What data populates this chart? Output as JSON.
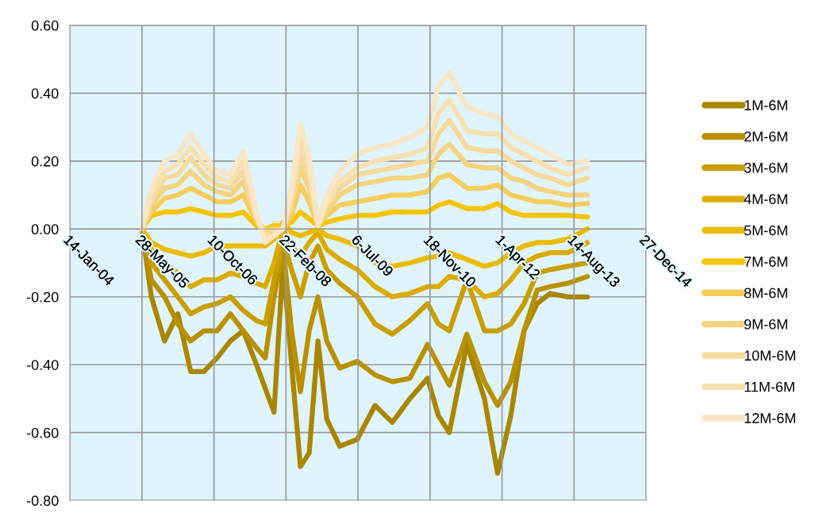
{
  "chart_data": {
    "type": "line",
    "x": [
      "2005-05-28",
      "2005-08-01",
      "2005-11-01",
      "2006-02-01",
      "2006-05-01",
      "2006-08-01",
      "2006-11-01",
      "2007-02-01",
      "2007-05-01",
      "2007-08-01",
      "2007-10-01",
      "2007-12-01",
      "2008-02-01",
      "2008-04-01",
      "2008-06-01",
      "2008-08-01",
      "2008-10-01",
      "2008-12-01",
      "2009-03-01",
      "2009-07-01",
      "2009-11-01",
      "2010-03-01",
      "2010-07-01",
      "2010-11-01",
      "2011-01-15",
      "2011-04-01",
      "2011-08-01",
      "2011-12-01",
      "2012-03-01",
      "2012-06-01",
      "2012-09-01",
      "2012-12-01",
      "2013-03-01",
      "2013-07-01",
      "2013-11-15"
    ],
    "series": [
      {
        "name": "1M-6M",
        "color": "#a98600",
        "values": [
          0.0,
          -0.2,
          -0.33,
          -0.25,
          -0.42,
          -0.42,
          -0.38,
          -0.33,
          -0.3,
          -0.4,
          -0.47,
          -0.54,
          -0.1,
          -0.4,
          -0.7,
          -0.66,
          -0.33,
          -0.56,
          -0.64,
          -0.62,
          -0.52,
          -0.57,
          -0.5,
          -0.44,
          -0.55,
          -0.6,
          -0.34,
          -0.5,
          -0.72,
          -0.55,
          -0.3,
          -0.22,
          -0.19,
          -0.2,
          -0.2
        ]
      },
      {
        "name": "2M-6M",
        "color": "#b99100",
        "values": [
          0.0,
          -0.15,
          -0.2,
          -0.28,
          -0.33,
          -0.3,
          -0.3,
          -0.25,
          -0.3,
          -0.35,
          -0.38,
          -0.2,
          -0.05,
          -0.3,
          -0.48,
          -0.3,
          -0.2,
          -0.33,
          -0.41,
          -0.39,
          -0.43,
          -0.45,
          -0.44,
          -0.34,
          -0.4,
          -0.46,
          -0.31,
          -0.45,
          -0.52,
          -0.45,
          -0.3,
          -0.18,
          -0.17,
          -0.16,
          -0.14
        ]
      },
      {
        "name": "3M-6M",
        "color": "#c89e00",
        "values": [
          0.0,
          -0.1,
          -0.15,
          -0.2,
          -0.25,
          -0.23,
          -0.22,
          -0.2,
          -0.24,
          -0.27,
          -0.28,
          -0.15,
          -0.03,
          -0.12,
          -0.2,
          -0.1,
          -0.05,
          -0.12,
          -0.16,
          -0.2,
          -0.28,
          -0.31,
          -0.27,
          -0.22,
          -0.28,
          -0.3,
          -0.15,
          -0.3,
          -0.3,
          -0.28,
          -0.22,
          -0.13,
          -0.12,
          -0.11,
          -0.1
        ]
      },
      {
        "name": "4M-6M",
        "color": "#dbac00",
        "values": [
          0.0,
          -0.06,
          -0.1,
          -0.13,
          -0.17,
          -0.15,
          -0.15,
          -0.13,
          -0.14,
          -0.16,
          -0.17,
          -0.1,
          0.0,
          -0.05,
          -0.08,
          -0.04,
          -0.01,
          -0.06,
          -0.09,
          -0.12,
          -0.17,
          -0.2,
          -0.19,
          -0.17,
          -0.17,
          -0.14,
          -0.15,
          -0.2,
          -0.19,
          -0.15,
          -0.1,
          -0.08,
          -0.07,
          -0.07,
          -0.04
        ]
      },
      {
        "name": "5M-6M",
        "color": "#ebbb00",
        "values": [
          0.0,
          -0.04,
          -0.06,
          -0.07,
          -0.08,
          -0.07,
          -0.05,
          -0.05,
          -0.05,
          -0.05,
          -0.05,
          -0.03,
          0.02,
          -0.01,
          -0.02,
          -0.01,
          0.0,
          -0.02,
          -0.03,
          -0.05,
          -0.1,
          -0.11,
          -0.1,
          -0.085,
          -0.08,
          -0.07,
          -0.09,
          -0.11,
          -0.1,
          -0.07,
          -0.05,
          -0.04,
          -0.04,
          -0.03,
          0.0
        ]
      },
      {
        "name": "7M-6M",
        "color": "#f5c400",
        "values": [
          0.0,
          0.04,
          0.05,
          0.05,
          0.06,
          0.05,
          0.04,
          0.04,
          0.05,
          0.01,
          0.0,
          0.01,
          0.01,
          0.02,
          0.05,
          0.03,
          0.01,
          0.02,
          0.03,
          0.04,
          0.04,
          0.05,
          0.05,
          0.05,
          0.07,
          0.08,
          0.06,
          0.06,
          0.075,
          0.05,
          0.04,
          0.04,
          0.04,
          0.04,
          0.035
        ]
      },
      {
        "name": "8M-6M",
        "color": "#f5cd5a",
        "values": [
          0.0,
          0.05,
          0.09,
          0.1,
          0.12,
          0.1,
          0.08,
          0.08,
          0.1,
          0.02,
          0.0,
          0.0,
          0.0,
          0.04,
          0.13,
          0.08,
          0.01,
          0.04,
          0.07,
          0.08,
          0.09,
          0.1,
          0.1,
          0.11,
          0.15,
          0.16,
          0.12,
          0.12,
          0.13,
          0.1,
          0.09,
          0.08,
          0.08,
          0.07,
          0.075
        ]
      },
      {
        "name": "9M-6M",
        "color": "#f5d47f",
        "values": [
          0.0,
          0.07,
          0.12,
          0.13,
          0.17,
          0.13,
          0.11,
          0.1,
          0.14,
          0.03,
          -0.01,
          0.0,
          0.0,
          0.06,
          0.18,
          0.12,
          0.01,
          0.05,
          0.1,
          0.13,
          0.14,
          0.15,
          0.15,
          0.16,
          0.22,
          0.25,
          0.19,
          0.18,
          0.18,
          0.15,
          0.14,
          0.12,
          0.11,
          0.1,
          0.1
        ]
      },
      {
        "name": "10M-6M",
        "color": "#f5da9a",
        "values": [
          0.0,
          0.08,
          0.15,
          0.16,
          0.21,
          0.16,
          0.13,
          0.12,
          0.17,
          0.03,
          -0.02,
          -0.01,
          0.0,
          0.08,
          0.22,
          0.15,
          0.01,
          0.07,
          0.12,
          0.16,
          0.17,
          0.18,
          0.19,
          0.2,
          0.28,
          0.32,
          0.24,
          0.23,
          0.23,
          0.2,
          0.18,
          0.16,
          0.15,
          0.13,
          0.15
        ]
      },
      {
        "name": "11M-6M",
        "color": "#f7e1b0",
        "values": [
          0.0,
          0.1,
          0.17,
          0.19,
          0.24,
          0.19,
          0.15,
          0.14,
          0.2,
          0.04,
          -0.03,
          -0.02,
          0.0,
          0.1,
          0.26,
          0.18,
          0.01,
          0.08,
          0.14,
          0.18,
          0.2,
          0.21,
          0.22,
          0.24,
          0.34,
          0.38,
          0.29,
          0.28,
          0.28,
          0.24,
          0.22,
          0.2,
          0.18,
          0.16,
          0.18
        ]
      },
      {
        "name": "12M-6M",
        "color": "#f8e6c6",
        "values": [
          0.0,
          0.12,
          0.2,
          0.22,
          0.28,
          0.22,
          0.17,
          0.16,
          0.23,
          0.05,
          -0.04,
          -0.02,
          0.0,
          0.12,
          0.31,
          0.21,
          0.01,
          0.1,
          0.17,
          0.22,
          0.24,
          0.25,
          0.27,
          0.3,
          0.42,
          0.46,
          0.36,
          0.34,
          0.33,
          0.28,
          0.26,
          0.24,
          0.22,
          0.19,
          0.2
        ]
      }
    ],
    "xlim": [
      "2004-01-14",
      "2014-12-27"
    ],
    "xticks": [
      {
        "value": "2004-01-14",
        "label": "14-Jan-04"
      },
      {
        "value": "2005-05-28",
        "label": "28-May-05"
      },
      {
        "value": "2006-10-10",
        "label": "10-Oct-06"
      },
      {
        "value": "2008-02-22",
        "label": "22-Feb-08"
      },
      {
        "value": "2009-07-06",
        "label": "6-Jul-09"
      },
      {
        "value": "2010-11-18",
        "label": "18-Nov-10"
      },
      {
        "value": "2012-04-01",
        "label": "1-Apr-12"
      },
      {
        "value": "2013-08-14",
        "label": "14-Aug-13"
      },
      {
        "value": "2014-12-27",
        "label": "27-Dec-14"
      }
    ],
    "ylim": [
      -0.8,
      0.6
    ],
    "yticks": [
      {
        "value": -0.8,
        "label": "-0.80"
      },
      {
        "value": -0.6,
        "label": "-0.60"
      },
      {
        "value": -0.4,
        "label": "-0.40"
      },
      {
        "value": -0.2,
        "label": "-0.20"
      },
      {
        "value": 0,
        "label": "0.00"
      },
      {
        "value": 0.2,
        "label": "0.20"
      },
      {
        "value": 0.4,
        "label": "0.40"
      },
      {
        "value": 0.6,
        "label": "0.60"
      }
    ],
    "grid": true,
    "legend": "right",
    "line_style": "solid"
  }
}
